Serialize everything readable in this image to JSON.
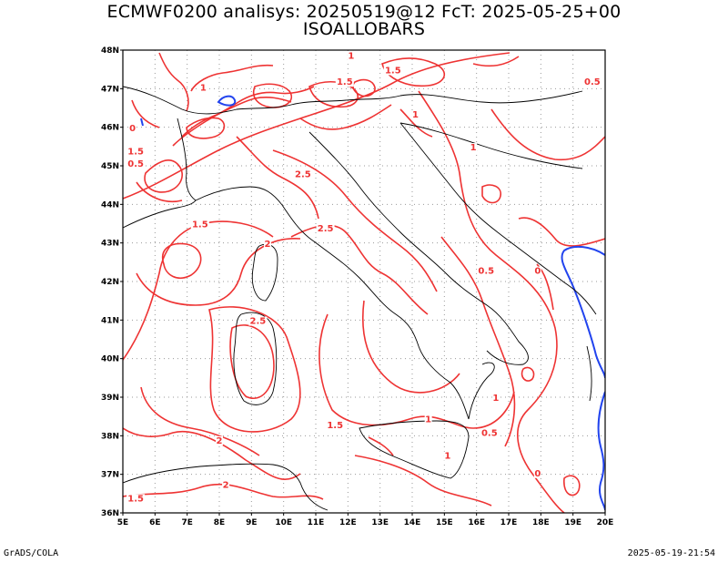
{
  "header": {
    "title_line1": "ECMWF0200 analisys: 20250519@12 FcT: 2025-05-25+00",
    "title_line2": "ISOALLOBARS"
  },
  "footer": {
    "left": "GrADS/COLA",
    "right": "2025-05-19-21:54"
  },
  "axes": {
    "lat_labels": [
      "48N",
      "47N",
      "46N",
      "45N",
      "44N",
      "43N",
      "42N",
      "41N",
      "40N",
      "39N",
      "38N",
      "37N",
      "36N"
    ],
    "lon_labels": [
      "5E",
      "6E",
      "7E",
      "8E",
      "9E",
      "10E",
      "11E",
      "12E",
      "13E",
      "14E",
      "15E",
      "16E",
      "17E",
      "18E",
      "19E",
      "20E"
    ]
  },
  "contour_labels": [
    {
      "text": "1",
      "lon": 12.1,
      "lat": 47.78
    },
    {
      "text": "1.5",
      "lon": 13.4,
      "lat": 47.4
    },
    {
      "text": "0.5",
      "lon": 19.6,
      "lat": 47.1
    },
    {
      "text": "1.5",
      "lon": 11.9,
      "lat": 47.1
    },
    {
      "text": "1",
      "lon": 7.5,
      "lat": 46.95
    },
    {
      "text": "0",
      "lon": 5.3,
      "lat": 45.9
    },
    {
      "text": "1",
      "lon": 14.1,
      "lat": 46.25
    },
    {
      "text": "1.5",
      "lon": 5.4,
      "lat": 45.3
    },
    {
      "text": "0.5",
      "lon": 5.4,
      "lat": 44.98
    },
    {
      "text": "1",
      "lon": 15.9,
      "lat": 45.4
    },
    {
      "text": "2.5",
      "lon": 10.6,
      "lat": 44.7
    },
    {
      "text": "1.5",
      "lon": 7.4,
      "lat": 43.4
    },
    {
      "text": "2.5",
      "lon": 11.3,
      "lat": 43.3
    },
    {
      "text": "2",
      "lon": 9.5,
      "lat": 42.9
    },
    {
      "text": "0.5",
      "lon": 16.3,
      "lat": 42.2
    },
    {
      "text": "0",
      "lon": 17.9,
      "lat": 42.2
    },
    {
      "text": "2.5",
      "lon": 9.2,
      "lat": 40.9
    },
    {
      "text": "1.5",
      "lon": 11.6,
      "lat": 38.2
    },
    {
      "text": "1",
      "lon": 14.5,
      "lat": 38.35
    },
    {
      "text": "0.5",
      "lon": 16.4,
      "lat": 38.0
    },
    {
      "text": "1",
      "lon": 16.6,
      "lat": 38.9
    },
    {
      "text": "2",
      "lon": 8.0,
      "lat": 37.8
    },
    {
      "text": "2",
      "lon": 8.2,
      "lat": 36.65
    },
    {
      "text": "1",
      "lon": 15.1,
      "lat": 37.4
    },
    {
      "text": "0",
      "lon": 17.9,
      "lat": 36.95
    },
    {
      "text": "1.5",
      "lon": 5.4,
      "lat": 36.3
    }
  ],
  "colors": {
    "positive_isallobar": "#ee3333",
    "negative_isallobar": "#2244ee",
    "coastline": "#000000",
    "grid": "#999999"
  }
}
